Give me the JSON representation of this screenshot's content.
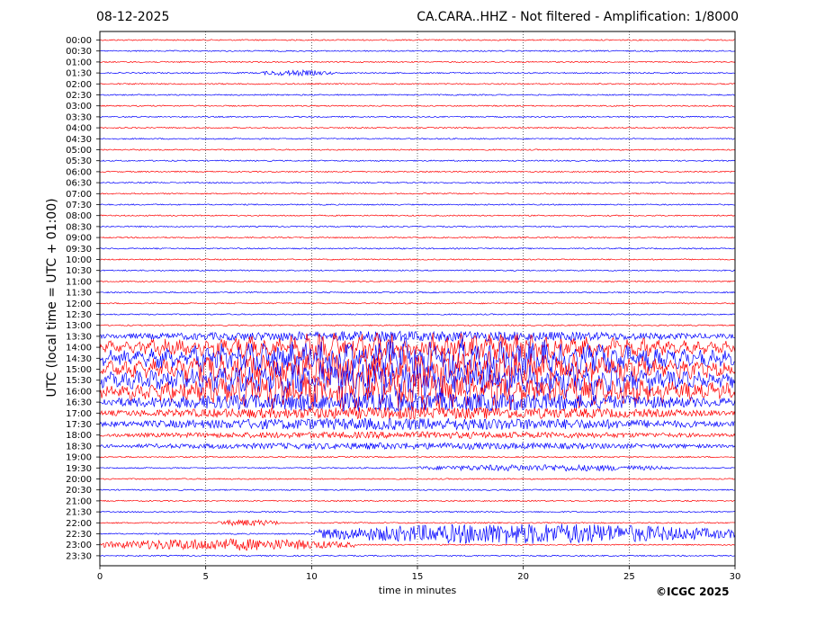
{
  "header": {
    "date": "08-12-2025",
    "title": "CA.CARA..HHZ - Not filtered - Amplification: 1/8000"
  },
  "footer": {
    "copyright": "©ICGC 2025"
  },
  "chart_data": {
    "type": "line",
    "title": "CA.CARA..HHZ - Not filtered - Amplification: 1/8000",
    "xlabel": "time in minutes",
    "ylabel": "UTC (local time = UTC + 01:00)",
    "xlim": [
      0,
      30
    ],
    "x_ticks": [
      0,
      5,
      10,
      15,
      20,
      25,
      30
    ],
    "grid": "vertical dotted lines at x ticks",
    "series_colors": [
      "#ff0000",
      "#0000ff"
    ],
    "color_pattern": "rows alternate red (full hour) and blue (half hour)",
    "rows": [
      {
        "label": "00:00",
        "color": "#ff0000",
        "activity": "quiet"
      },
      {
        "label": "00:30",
        "color": "#0000ff",
        "activity": "quiet"
      },
      {
        "label": "01:00",
        "color": "#ff0000",
        "activity": "quiet"
      },
      {
        "label": "01:30",
        "color": "#0000ff",
        "activity": "small wave train",
        "event_start_min": 7.5,
        "event_end_min": 11.0
      },
      {
        "label": "02:00",
        "color": "#ff0000",
        "activity": "quiet"
      },
      {
        "label": "02:30",
        "color": "#0000ff",
        "activity": "quiet"
      },
      {
        "label": "03:00",
        "color": "#ff0000",
        "activity": "quiet"
      },
      {
        "label": "03:30",
        "color": "#0000ff",
        "activity": "quiet"
      },
      {
        "label": "04:00",
        "color": "#ff0000",
        "activity": "quiet"
      },
      {
        "label": "04:30",
        "color": "#0000ff",
        "activity": "quiet"
      },
      {
        "label": "05:00",
        "color": "#ff0000",
        "activity": "quiet"
      },
      {
        "label": "05:30",
        "color": "#0000ff",
        "activity": "quiet"
      },
      {
        "label": "06:00",
        "color": "#ff0000",
        "activity": "quiet"
      },
      {
        "label": "06:30",
        "color": "#0000ff",
        "activity": "quiet"
      },
      {
        "label": "07:00",
        "color": "#ff0000",
        "activity": "quiet"
      },
      {
        "label": "07:30",
        "color": "#0000ff",
        "activity": "quiet"
      },
      {
        "label": "08:00",
        "color": "#ff0000",
        "activity": "quiet"
      },
      {
        "label": "08:30",
        "color": "#0000ff",
        "activity": "quiet"
      },
      {
        "label": "09:00",
        "color": "#ff0000",
        "activity": "quiet"
      },
      {
        "label": "09:30",
        "color": "#0000ff",
        "activity": "quiet"
      },
      {
        "label": "10:00",
        "color": "#ff0000",
        "activity": "quiet"
      },
      {
        "label": "10:30",
        "color": "#0000ff",
        "activity": "quiet"
      },
      {
        "label": "11:00",
        "color": "#ff0000",
        "activity": "quiet"
      },
      {
        "label": "11:30",
        "color": "#0000ff",
        "activity": "quiet"
      },
      {
        "label": "12:00",
        "color": "#ff0000",
        "activity": "quiet"
      },
      {
        "label": "12:30",
        "color": "#0000ff",
        "activity": "quiet"
      },
      {
        "label": "13:00",
        "color": "#ff0000",
        "activity": "quiet"
      },
      {
        "label": "13:30",
        "color": "#0000ff",
        "activity": "noisy",
        "event_start_min": 0.0,
        "event_end_min": 30.0
      },
      {
        "label": "14:00",
        "color": "#ff0000",
        "activity": "large spikes",
        "event_start_min": 0.0,
        "event_end_min": 30.0
      },
      {
        "label": "14:30",
        "color": "#0000ff",
        "activity": "strong oscillation",
        "event_start_min": 0.0,
        "event_end_min": 30.0
      },
      {
        "label": "15:00",
        "color": "#ff0000",
        "activity": "strong oscillation",
        "event_start_min": 0.0,
        "event_end_min": 30.0
      },
      {
        "label": "15:30",
        "color": "#0000ff",
        "activity": "strong oscillation",
        "event_start_min": 0.0,
        "event_end_min": 30.0
      },
      {
        "label": "16:00",
        "color": "#ff0000",
        "activity": "strong oscillation",
        "event_start_min": 0.0,
        "event_end_min": 30.0
      },
      {
        "label": "16:30",
        "color": "#0000ff",
        "activity": "oscillation",
        "event_start_min": 0.0,
        "event_end_min": 30.0
      },
      {
        "label": "17:00",
        "color": "#ff0000",
        "activity": "moderate",
        "event_start_min": 0.0,
        "event_end_min": 30.0
      },
      {
        "label": "17:30",
        "color": "#0000ff",
        "activity": "moderate",
        "event_start_min": 0.0,
        "event_end_min": 30.0
      },
      {
        "label": "18:00",
        "color": "#ff0000",
        "activity": "small",
        "event_start_min": 0.0,
        "event_end_min": 30.0
      },
      {
        "label": "18:30",
        "color": "#0000ff",
        "activity": "small",
        "event_start_min": 0.0,
        "event_end_min": 30.0
      },
      {
        "label": "19:00",
        "color": "#ff0000",
        "activity": "quiet"
      },
      {
        "label": "19:30",
        "color": "#0000ff",
        "activity": "small wave trains",
        "event_start_min": 15.0,
        "event_end_min": 27.0
      },
      {
        "label": "20:00",
        "color": "#ff0000",
        "activity": "quiet"
      },
      {
        "label": "20:30",
        "color": "#0000ff",
        "activity": "quiet"
      },
      {
        "label": "21:00",
        "color": "#ff0000",
        "activity": "quiet"
      },
      {
        "label": "21:30",
        "color": "#0000ff",
        "activity": "quiet"
      },
      {
        "label": "22:00",
        "color": "#ff0000",
        "activity": "small burst",
        "event_start_min": 5.5,
        "event_end_min": 8.5
      },
      {
        "label": "22:30",
        "color": "#0000ff",
        "activity": "large oscillation",
        "event_start_min": 10.0,
        "event_end_min": 30.0
      },
      {
        "label": "23:00",
        "color": "#ff0000",
        "activity": "moderate",
        "event_start_min": 0.0,
        "event_end_min": 12.0
      },
      {
        "label": "23:30",
        "color": "#0000ff",
        "activity": "quiet"
      }
    ]
  }
}
